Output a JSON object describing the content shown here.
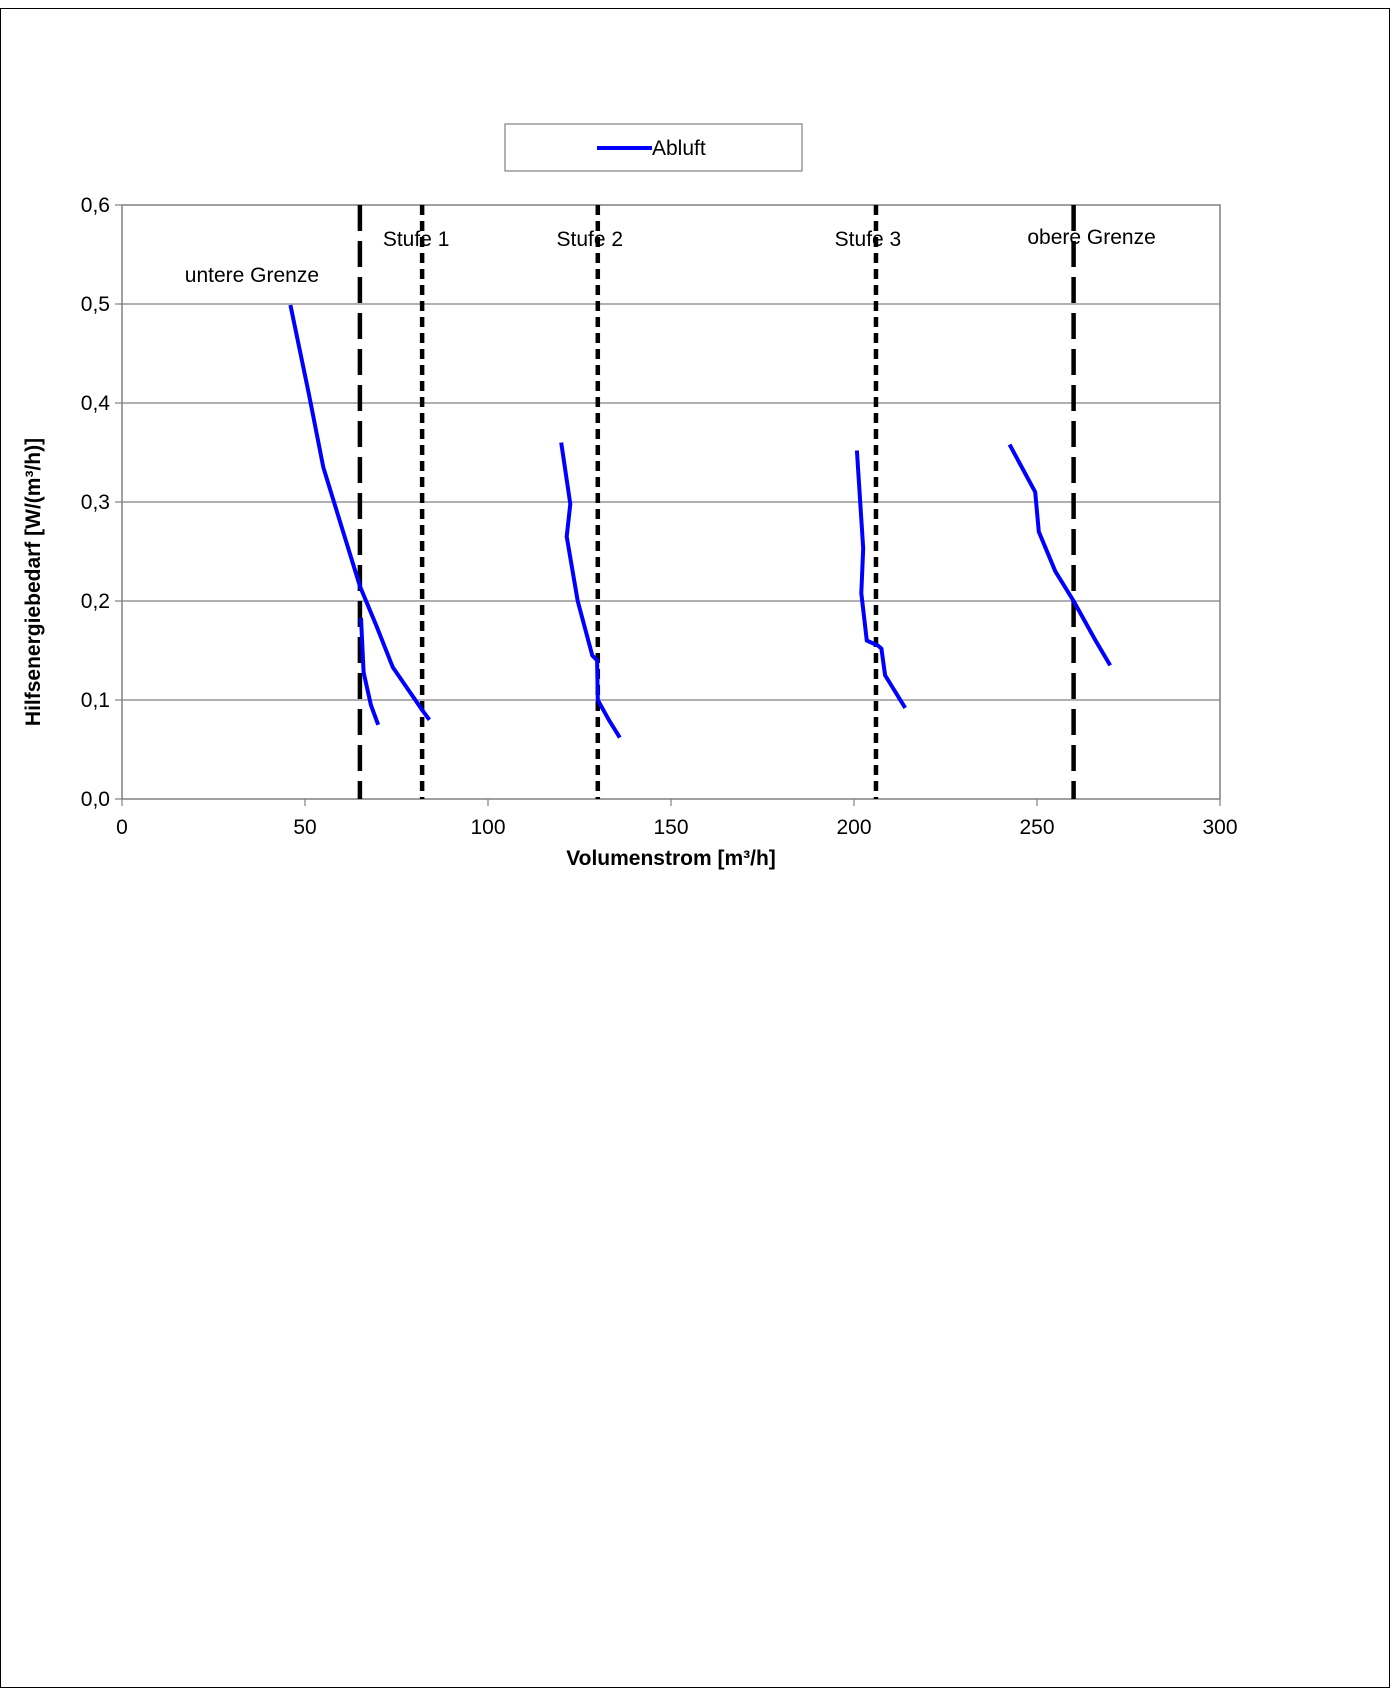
{
  "chart_data": {
    "type": "line",
    "title": "",
    "xlabel": "Volumenstrom [m³/h]",
    "ylabel": "Hilfsenergiebedarf [W/(m³/h)]",
    "xlim": [
      0,
      300
    ],
    "ylim": [
      0,
      0.6
    ],
    "x_ticks": [
      0,
      50,
      100,
      150,
      200,
      250,
      300
    ],
    "x_tick_labels": [
      "0",
      "50",
      "100",
      "150",
      "200",
      "250",
      "300"
    ],
    "y_ticks": [
      0,
      0.1,
      0.2,
      0.3,
      0.4,
      0.5,
      0.6
    ],
    "y_tick_labels": [
      "0,0",
      "0,1",
      "0,2",
      "0,3",
      "0,4",
      "0,5",
      "0,6"
    ],
    "grid": "horizontal",
    "legend": {
      "position": "top",
      "entries": [
        "Abluft"
      ]
    },
    "series_color": "#0000ff",
    "series": [
      {
        "name": "Abluft",
        "segments": [
          [
            [
              46,
              0.499
            ],
            [
              51,
              0.41
            ],
            [
              55,
              0.335
            ],
            [
              60,
              0.275
            ],
            [
              65,
              0.215
            ],
            [
              69.5,
              0.175
            ],
            [
              74,
              0.133
            ],
            [
              82,
              0.09
            ],
            [
              84,
              0.08
            ]
          ],
          [
            [
              65.3,
              0.183
            ],
            [
              66,
              0.128
            ],
            [
              68,
              0.095
            ],
            [
              70,
              0.075
            ]
          ],
          [
            [
              120,
              0.36
            ],
            [
              122.5,
              0.298
            ],
            [
              121.5,
              0.265
            ],
            [
              124.5,
              0.2
            ],
            [
              128.5,
              0.145
            ],
            [
              129.8,
              0.14
            ],
            [
              130,
              0.1
            ],
            [
              133,
              0.08
            ],
            [
              136,
              0.062
            ]
          ],
          [
            [
              200.8,
              0.352
            ],
            [
              202.5,
              0.253
            ],
            [
              202,
              0.208
            ],
            [
              203.5,
              0.16
            ],
            [
              206.5,
              0.155
            ],
            [
              207.5,
              0.152
            ],
            [
              208.5,
              0.125
            ],
            [
              214,
              0.092
            ]
          ],
          [
            [
              242.5,
              0.358
            ],
            [
              249.5,
              0.31
            ],
            [
              250.5,
              0.27
            ],
            [
              255,
              0.23
            ],
            [
              260,
              0.2
            ],
            [
              266,
              0.16
            ],
            [
              270,
              0.135
            ]
          ]
        ]
      }
    ],
    "vertical_lines": [
      {
        "x": 65,
        "label": "untere Grenze",
        "style": "dashed"
      },
      {
        "x": 82,
        "label": "Stufe 1",
        "style": "dotted"
      },
      {
        "x": 130,
        "label": "Stufe 2",
        "style": "dotted"
      },
      {
        "x": 206,
        "label": "Stufe 3",
        "style": "dotted"
      },
      {
        "x": 260,
        "label": "obere Grenze",
        "style": "dashed"
      }
    ]
  }
}
